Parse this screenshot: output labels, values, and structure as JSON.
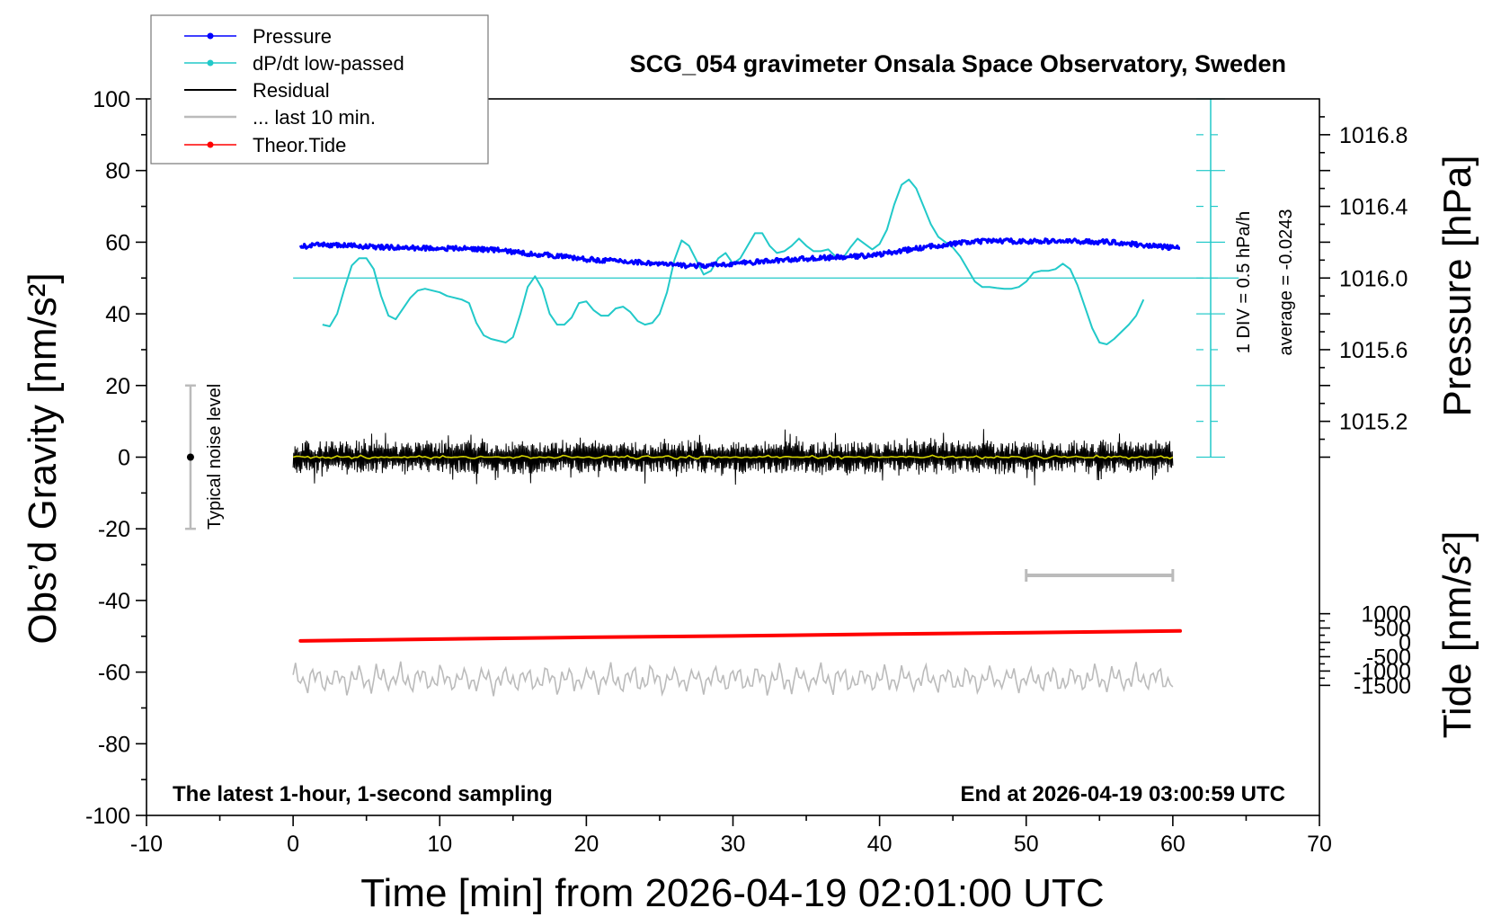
{
  "chart_data": {
    "type": "line",
    "title": "SCG_054 gravimeter Onsala Space Observatory, Sweden",
    "xlabel": "Time [min] from 2026-04-19 02:01:00 UTC",
    "ylabel_left": "Obs’d Gravity [nm/s²]",
    "ylabel_right_top": "Pressure [hPa]",
    "ylabel_right_bottom": "Tide [nm/s²]",
    "xlim": [
      -10,
      70
    ],
    "ylim": [
      -100,
      100
    ],
    "x_ticks": [
      "-10",
      "0",
      "10",
      "20",
      "30",
      "40",
      "50",
      "60",
      "70"
    ],
    "y_ticks": [
      "-100",
      "-80",
      "-60",
      "-40",
      "-20",
      "0",
      "20",
      "40",
      "60",
      "80",
      "100"
    ],
    "pressure_ticks": [
      "1015.2",
      "1015.6",
      "1016.0",
      "1016.4",
      "1016.8"
    ],
    "tide_ticks": [
      "-1500",
      "-1000",
      "-500",
      "0",
      "500",
      "1000"
    ],
    "pressure_axis": {
      "min_hPa": 1016.0,
      "min_gravity": 50,
      "hPa_per_20": 0.4
    },
    "tide_axis": {
      "scale_nm_per_unit": 125,
      "zero_gravity": -51.7
    },
    "legend": {
      "placement": "top-left",
      "entries": [
        {
          "label": "Pressure",
          "color": "#0000ff",
          "marker": "dot"
        },
        {
          "label": "dP/dt low-passed",
          "color": "#22c9c9",
          "marker": "dot"
        },
        {
          "label": "Residual",
          "color": "#000000",
          "marker": "none"
        },
        {
          "label": "... last 10 min.",
          "color": "#bbbbbb",
          "marker": "none"
        },
        {
          "label": "Theor.Tide",
          "color": "#ff0000",
          "marker": "dot"
        }
      ]
    },
    "annotations": {
      "bottom_left": "The latest 1-hour, 1-second sampling",
      "bottom_right": "End at 2026-04-19 03:00:59 UTC",
      "noise_label": "Typical noise level",
      "div_label": "1 DIV = 0.5 hPa/h",
      "average_label": "average = -0.0243"
    },
    "series": [
      {
        "name": "Pressure",
        "color": "#0000ff",
        "x": [
          0.5,
          2,
          4,
          6,
          8,
          10,
          12,
          14,
          16,
          18,
          20,
          22,
          24,
          26,
          28,
          30,
          32,
          34,
          36,
          38,
          40,
          42,
          44,
          46,
          48,
          50,
          52,
          54,
          56,
          58,
          60.5
        ],
        "y": [
          58.7,
          59.3,
          59.0,
          58.6,
          58.4,
          58.3,
          58.2,
          57.8,
          56.8,
          56.2,
          55.2,
          54.8,
          54.3,
          53.6,
          53.4,
          54.0,
          54.6,
          55.2,
          55.6,
          55.9,
          56.6,
          57.9,
          59.1,
          60.0,
          60.4,
          60.2,
          60.3,
          60.2,
          60.0,
          59.2,
          58.3
        ]
      },
      {
        "name": "dP/dt low-passed",
        "color": "#22c9c9",
        "x": [
          2.0,
          2.5,
          3.0,
          3.5,
          4.0,
          4.5,
          5.0,
          5.5,
          6.0,
          6.5,
          7.0,
          7.5,
          8.0,
          8.5,
          9.0,
          9.5,
          10.0,
          10.5,
          11.0,
          11.5,
          12.0,
          12.5,
          13.0,
          13.5,
          14.0,
          14.5,
          15.0,
          15.5,
          16.0,
          16.5,
          17.0,
          17.5,
          18.0,
          18.5,
          19.0,
          19.5,
          20.0,
          20.5,
          21.0,
          21.5,
          22.0,
          22.5,
          23.0,
          23.5,
          24.0,
          24.5,
          25.0,
          25.5,
          26.0,
          26.5,
          27.0,
          27.5,
          28.0,
          28.5,
          29.0,
          29.5,
          30.0,
          30.5,
          31.0,
          31.5,
          32.0,
          32.5,
          33.0,
          33.5,
          34.0,
          34.5,
          35.0,
          35.5,
          36.0,
          36.5,
          37.0,
          37.5,
          38.0,
          38.5,
          39.0,
          39.5,
          40.0,
          40.5,
          41.0,
          41.5,
          42.0,
          42.5,
          43.0,
          43.5,
          44.0,
          44.5,
          45.0,
          45.5,
          46.0,
          46.5,
          47.0,
          47.5,
          48.0,
          48.5,
          49.0,
          49.5,
          50.0,
          50.5,
          51.0,
          51.5,
          52.0,
          52.5,
          53.0,
          53.5,
          54.0,
          54.5,
          55.0,
          55.5,
          56.0,
          56.5,
          57.0,
          57.5,
          58.0
        ],
        "y": [
          37,
          36.5,
          40,
          47,
          53.5,
          55.5,
          55.5,
          52.5,
          45,
          39.5,
          38.5,
          41.5,
          44.5,
          46.5,
          47,
          46.5,
          46,
          45,
          44.5,
          44,
          43,
          37.5,
          34,
          33,
          32.5,
          32,
          33.5,
          40,
          47.5,
          50.5,
          47,
          40,
          37,
          37,
          39,
          43,
          43.5,
          41,
          39.5,
          39.5,
          41.5,
          42,
          40.5,
          38,
          37,
          37.5,
          40,
          46,
          55,
          60.5,
          59,
          55,
          51,
          52,
          55.5,
          57,
          54,
          55.5,
          59,
          62.5,
          62.5,
          59,
          57,
          57.5,
          59,
          61,
          59,
          57.5,
          57.5,
          58,
          56,
          55.5,
          58.5,
          61,
          59.5,
          58,
          59.5,
          63.5,
          70.5,
          76,
          77.5,
          75,
          70,
          65,
          61.5,
          60,
          58.5,
          56,
          52.5,
          49,
          47.5,
          47.5,
          47.2,
          47,
          47,
          47.5,
          49,
          51.5,
          52,
          52,
          52.5,
          54,
          52.5,
          48,
          42,
          36,
          32,
          31.5,
          33,
          35,
          37,
          39.5,
          44
        ]
      },
      {
        "name": "Residual",
        "color": "#000000",
        "x_range": [
          0,
          60
        ],
        "amplitude": 3.5,
        "y_center": 0
      },
      {
        "name": "Residual smoothed",
        "color": "#d4d400",
        "x_range": [
          0,
          60
        ],
        "y_center": 0
      },
      {
        "name": "... last 10 min.",
        "color": "#bbbbbb",
        "x_range": [
          0,
          60
        ],
        "amplitude": 4,
        "y_center": -62,
        "bar_x": [
          50,
          60
        ],
        "bar_y": -33
      },
      {
        "name": "Theor.Tide",
        "color": "#ff0000",
        "x": [
          0.5,
          10,
          20,
          30,
          40,
          50,
          60.5
        ],
        "y": [
          -51.3,
          -50.8,
          -50.3,
          -49.9,
          -49.4,
          -49.0,
          -48.5
        ]
      }
    ],
    "noise_bar": {
      "x": -7,
      "ymin": -20,
      "ymax": 20
    }
  }
}
